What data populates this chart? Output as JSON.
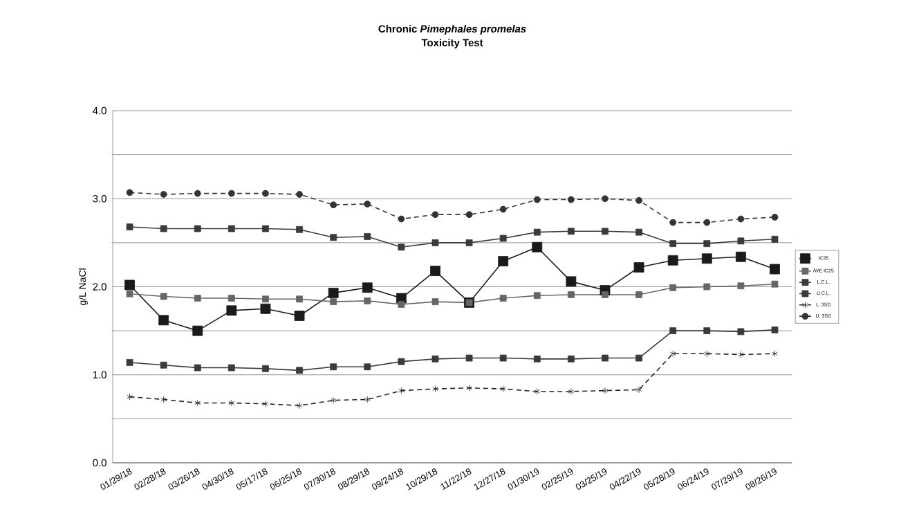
{
  "chart_data": {
    "type": "line",
    "title": "Chronic *Pimephales promelas*",
    "subtitle": "Toxicity Test",
    "ylabel": "g/L NaCl",
    "categories": [
      "01/29/18",
      "02/28/18",
      "03/26/18",
      "04/30/18",
      "05/17/18",
      "06/25/18",
      "07/30/18",
      "08/29/18",
      "09/24/18",
      "10/29/18",
      "11/22/18",
      "12/27/18",
      "01/30/19",
      "02/25/19",
      "03/25/19",
      "04/22/19",
      "05/28/19",
      "06/24/19",
      "07/29/19",
      "08/26/19"
    ],
    "series": [
      {
        "name": "IC25",
        "color": "#1a1a1a",
        "marker": "square",
        "line_style": "solid",
        "values": [
          2.02,
          1.62,
          1.5,
          1.73,
          1.75,
          1.67,
          1.93,
          1.99,
          1.87,
          2.18,
          1.82,
          2.29,
          2.45,
          2.06,
          1.96,
          2.22,
          2.3,
          2.32,
          2.34,
          2.2
        ]
      },
      {
        "name": "AVE IC25",
        "color": "#666666",
        "marker": "square",
        "line_style": "solid",
        "values": [
          1.92,
          1.89,
          1.87,
          1.87,
          1.86,
          1.86,
          1.83,
          1.84,
          1.8,
          1.83,
          1.82,
          1.87,
          1.9,
          1.91,
          1.91,
          1.91,
          1.99,
          2.0,
          2.01,
          2.03
        ]
      },
      {
        "name": "L.C.L.",
        "color": "#3a3a3a",
        "marker": "square",
        "line_style": "solid",
        "values": [
          1.14,
          1.11,
          1.08,
          1.08,
          1.07,
          1.05,
          1.09,
          1.09,
          1.15,
          1.18,
          1.19,
          1.19,
          1.18,
          1.18,
          1.19,
          1.19,
          1.5,
          1.5,
          1.49,
          1.51
        ]
      },
      {
        "name": "U.C.L.",
        "color": "#3a3a3a",
        "marker": "square",
        "line_style": "solid",
        "values": [
          2.68,
          2.66,
          2.66,
          2.66,
          2.66,
          2.65,
          2.56,
          2.57,
          2.45,
          2.5,
          2.5,
          2.55,
          2.62,
          2.63,
          2.63,
          2.62,
          2.49,
          2.49,
          2.52,
          2.54
        ]
      },
      {
        "name": "L. 3SD",
        "color": "#222222",
        "marker": "cross",
        "line_style": "dashed",
        "values": [
          0.75,
          0.72,
          0.68,
          0.68,
          0.67,
          0.65,
          0.71,
          0.72,
          0.82,
          0.84,
          0.85,
          0.84,
          0.81,
          0.81,
          0.82,
          0.83,
          1.24,
          1.24,
          1.23,
          1.24
        ]
      },
      {
        "name": "U. 3SD",
        "color": "#333333",
        "marker": "circle",
        "line_style": "dashed",
        "values": [
          3.07,
          3.05,
          3.06,
          3.06,
          3.06,
          3.05,
          2.93,
          2.94,
          2.77,
          2.82,
          2.82,
          2.88,
          2.99,
          2.99,
          3.0,
          2.98,
          2.73,
          2.73,
          2.77,
          2.79
        ]
      }
    ],
    "ylim": [
      0,
      4
    ],
    "yticks": [
      {
        "value": 0,
        "label": "0.0"
      },
      {
        "value": 0.5,
        "label": null
      },
      {
        "value": 1,
        "label": "1.0"
      },
      {
        "value": 1.5,
        "label": null
      },
      {
        "value": 2,
        "label": "2.0"
      },
      {
        "value": 2.5,
        "label": null
      },
      {
        "value": 3,
        "label": "3.0"
      },
      {
        "value": 3.5,
        "label": null
      },
      {
        "value": 4,
        "label": "4.0"
      }
    ],
    "grid": "y",
    "legend": "right"
  }
}
